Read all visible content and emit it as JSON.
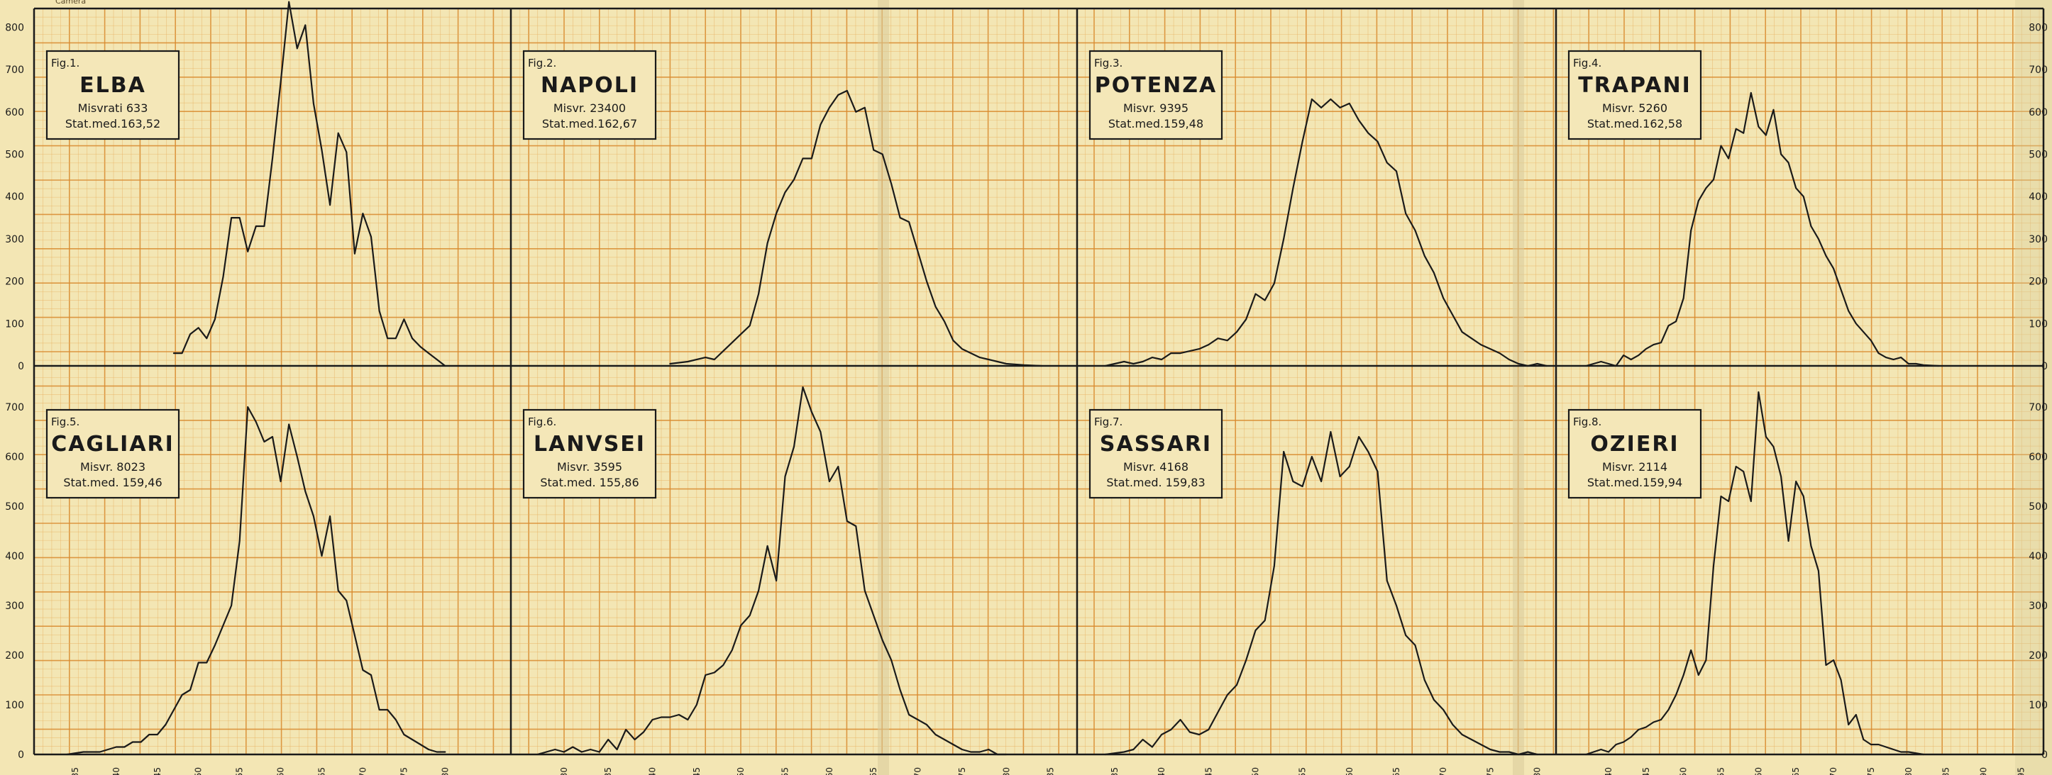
{
  "yticks": [
    "0",
    "100",
    "200",
    "300",
    "400",
    "500",
    "600",
    "700",
    "800"
  ],
  "corner_note": "Camera",
  "style": {
    "paper": "#f3e6b4",
    "minor_grid": "#e8b060",
    "major_grid": "#d98a2e",
    "ink": "#1a1a1a",
    "card": "#f4e7b8",
    "spine": "#d8cb9a"
  },
  "chart_data": [
    {
      "type": "line",
      "fig": "Fig.1.",
      "title": "ELBA",
      "line1": "Misvrati 633",
      "line2": "Stat.med.163,52",
      "xlim": [
        130,
        188
      ],
      "ylim": [
        0,
        850
      ],
      "xticks": [
        135,
        140,
        145,
        150,
        155,
        160,
        165,
        170,
        175,
        180
      ],
      "x": [
        147,
        148,
        149,
        150,
        151,
        152,
        153,
        154,
        155,
        156,
        157,
        158,
        159,
        160,
        161,
        162,
        163,
        164,
        165,
        166,
        167,
        168,
        169,
        170,
        171,
        172,
        173,
        174,
        175,
        176,
        177,
        178,
        179,
        180
      ],
      "y": [
        30,
        30,
        75,
        90,
        65,
        110,
        210,
        350,
        350,
        270,
        330,
        330,
        490,
        670,
        860,
        750,
        805,
        620,
        510,
        380,
        550,
        505,
        265,
        360,
        305,
        130,
        65,
        65,
        110,
        65,
        45,
        30,
        15,
        0
      ]
    },
    {
      "type": "line",
      "fig": "Fig.2.",
      "title": "NAPOLI",
      "line1": "Misvr. 23400",
      "line2": "Stat.med.162,67",
      "xlim": [
        124,
        188
      ],
      "ylim": [
        0,
        850
      ],
      "xticks": [
        130,
        135,
        140,
        145,
        150,
        155,
        160,
        165,
        170,
        175,
        180,
        185
      ],
      "x": [
        142,
        144,
        146,
        147,
        148,
        149,
        150,
        151,
        152,
        153,
        154,
        155,
        156,
        157,
        158,
        159,
        160,
        161,
        162,
        163,
        164,
        165,
        166,
        167,
        168,
        169,
        170,
        171,
        172,
        173,
        174,
        175,
        176,
        177,
        178,
        179,
        180,
        182,
        184
      ],
      "y": [
        5,
        10,
        20,
        15,
        35,
        55,
        75,
        95,
        170,
        290,
        360,
        410,
        440,
        490,
        490,
        570,
        610,
        640,
        650,
        600,
        610,
        510,
        500,
        430,
        350,
        340,
        270,
        200,
        140,
        105,
        60,
        40,
        30,
        20,
        15,
        10,
        5,
        2,
        0
      ]
    },
    {
      "type": "line",
      "fig": "Fig.3.",
      "title": "POTENZA",
      "line1": "Misvr. 9395",
      "line2": "Stat.med.159,48",
      "xlim": [
        131,
        182
      ],
      "ylim": [
        0,
        850
      ],
      "xticks": [
        135,
        140,
        145,
        150,
        155,
        160,
        165,
        170,
        175,
        180
      ],
      "x": [
        134,
        136,
        137,
        138,
        139,
        140,
        141,
        142,
        143,
        144,
        145,
        146,
        147,
        148,
        149,
        150,
        151,
        152,
        153,
        154,
        155,
        156,
        157,
        158,
        159,
        160,
        161,
        162,
        163,
        164,
        165,
        166,
        167,
        168,
        169,
        170,
        171,
        172,
        173,
        174,
        175,
        176,
        177,
        178,
        179,
        180,
        181
      ],
      "y": [
        0,
        10,
        5,
        10,
        20,
        15,
        30,
        30,
        35,
        40,
        50,
        65,
        60,
        80,
        110,
        170,
        155,
        195,
        300,
        420,
        530,
        630,
        610,
        630,
        610,
        620,
        580,
        550,
        530,
        480,
        460,
        360,
        320,
        260,
        220,
        160,
        120,
        80,
        65,
        50,
        40,
        30,
        15,
        5,
        0,
        5,
        0
      ]
    },
    {
      "type": "line",
      "fig": "Fig.4.",
      "title": "TRAPANI",
      "line1": "Misvr. 5260",
      "line2": "Stat.med.162,58",
      "xlim": [
        133,
        198
      ],
      "ylim": [
        0,
        850
      ],
      "xticks": [
        140,
        145,
        150,
        155,
        160,
        165,
        170,
        175,
        180,
        185,
        190,
        195
      ],
      "x": [
        137,
        139,
        140,
        141,
        142,
        143,
        144,
        145,
        146,
        147,
        148,
        149,
        150,
        151,
        152,
        153,
        154,
        155,
        156,
        157,
        158,
        159,
        160,
        161,
        162,
        163,
        164,
        165,
        166,
        167,
        168,
        169,
        170,
        171,
        172,
        173,
        174,
        175,
        176,
        177,
        178,
        179,
        180,
        181,
        182,
        184
      ],
      "y": [
        0,
        10,
        5,
        0,
        25,
        15,
        25,
        40,
        50,
        55,
        95,
        105,
        160,
        320,
        390,
        420,
        440,
        520,
        490,
        560,
        550,
        645,
        565,
        545,
        605,
        500,
        480,
        420,
        400,
        330,
        300,
        260,
        230,
        180,
        130,
        100,
        80,
        60,
        30,
        20,
        15,
        20,
        5,
        5,
        2,
        0
      ]
    },
    {
      "type": "line",
      "fig": "Fig.5.",
      "title": "CAGLIARI",
      "line1": "Misvr. 8023",
      "line2": "Stat.med. 159,46",
      "xlim": [
        130,
        188
      ],
      "ylim": [
        0,
        750
      ],
      "xticks": [
        135,
        140,
        145,
        150,
        155,
        160,
        165,
        170,
        175,
        180
      ],
      "x": [
        134,
        136,
        138,
        140,
        141,
        142,
        143,
        144,
        145,
        146,
        147,
        148,
        149,
        150,
        151,
        152,
        153,
        154,
        155,
        156,
        157,
        158,
        159,
        160,
        161,
        162,
        163,
        164,
        165,
        166,
        167,
        168,
        169,
        170,
        171,
        172,
        173,
        174,
        175,
        176,
        177,
        178,
        179,
        180
      ],
      "y": [
        0,
        5,
        5,
        15,
        15,
        25,
        25,
        40,
        40,
        60,
        90,
        120,
        130,
        185,
        185,
        220,
        260,
        300,
        430,
        700,
        670,
        630,
        640,
        550,
        665,
        600,
        530,
        480,
        400,
        480,
        330,
        310,
        240,
        170,
        160,
        90,
        90,
        70,
        40,
        30,
        20,
        10,
        5,
        5
      ]
    },
    {
      "type": "line",
      "fig": "Fig.6.",
      "title": "LANVSEI",
      "line1": "Misvr. 3595",
      "line2": "Stat.med. 155,86",
      "xlim": [
        124,
        188
      ],
      "ylim": [
        0,
        750
      ],
      "xticks": [
        130,
        135,
        140,
        145,
        150,
        155,
        160,
        165,
        170,
        175,
        180,
        185
      ],
      "x": [
        127,
        129,
        130,
        131,
        132,
        133,
        134,
        135,
        136,
        137,
        138,
        139,
        140,
        141,
        142,
        143,
        144,
        145,
        146,
        147,
        148,
        149,
        150,
        151,
        152,
        153,
        154,
        155,
        156,
        157,
        158,
        159,
        160,
        161,
        162,
        163,
        164,
        165,
        166,
        167,
        168,
        169,
        170,
        171,
        172,
        173,
        174,
        175,
        176,
        177,
        178,
        179,
        180
      ],
      "y": [
        0,
        10,
        5,
        15,
        5,
        10,
        5,
        30,
        10,
        50,
        30,
        45,
        70,
        75,
        75,
        80,
        70,
        100,
        160,
        165,
        180,
        210,
        260,
        280,
        330,
        420,
        350,
        560,
        620,
        740,
        690,
        650,
        550,
        580,
        470,
        460,
        330,
        280,
        230,
        190,
        130,
        80,
        70,
        60,
        40,
        30,
        20,
        10,
        5,
        5,
        10,
        0,
        0
      ]
    },
    {
      "type": "line",
      "fig": "Fig.7.",
      "title": "SASSARI",
      "line1": "Misvr. 4168",
      "line2": "Stat.med. 159,83",
      "xlim": [
        131,
        182
      ],
      "ylim": [
        0,
        750
      ],
      "xticks": [
        135,
        140,
        145,
        150,
        155,
        160,
        165,
        170,
        175,
        180
      ],
      "x": [
        134,
        136,
        137,
        138,
        139,
        140,
        141,
        142,
        143,
        144,
        145,
        146,
        147,
        148,
        149,
        150,
        151,
        152,
        153,
        154,
        155,
        156,
        157,
        158,
        159,
        160,
        161,
        162,
        163,
        164,
        165,
        166,
        167,
        168,
        169,
        170,
        171,
        172,
        173,
        174,
        175,
        176,
        177,
        178,
        179,
        180
      ],
      "y": [
        0,
        5,
        10,
        30,
        15,
        40,
        50,
        70,
        45,
        40,
        50,
        85,
        120,
        140,
        190,
        250,
        270,
        380,
        610,
        550,
        540,
        600,
        550,
        650,
        560,
        580,
        640,
        610,
        570,
        350,
        300,
        240,
        220,
        150,
        110,
        90,
        60,
        40,
        30,
        20,
        10,
        5,
        5,
        0,
        5,
        0
      ]
    },
    {
      "type": "line",
      "fig": "Fig.8.",
      "title": "OZIERI",
      "line1": "Misvr. 2114",
      "line2": "Stat.med.159,94",
      "xlim": [
        133,
        198
      ],
      "ylim": [
        0,
        750
      ],
      "xticks": [
        140,
        145,
        150,
        155,
        160,
        165,
        170,
        175,
        180,
        185,
        190,
        195
      ],
      "x": [
        137,
        139,
        140,
        141,
        142,
        143,
        144,
        145,
        146,
        147,
        148,
        149,
        150,
        151,
        152,
        153,
        154,
        155,
        156,
        157,
        158,
        159,
        160,
        161,
        162,
        163,
        164,
        165,
        166,
        167,
        168,
        169,
        170,
        171,
        172,
        173,
        174,
        175,
        176,
        177,
        178,
        179,
        180,
        182
      ],
      "y": [
        0,
        10,
        5,
        20,
        25,
        35,
        50,
        55,
        65,
        70,
        90,
        120,
        160,
        210,
        160,
        190,
        380,
        520,
        510,
        580,
        570,
        510,
        730,
        640,
        620,
        560,
        430,
        550,
        520,
        420,
        370,
        180,
        190,
        150,
        60,
        80,
        30,
        20,
        20,
        15,
        10,
        5,
        5,
        0
      ]
    }
  ]
}
